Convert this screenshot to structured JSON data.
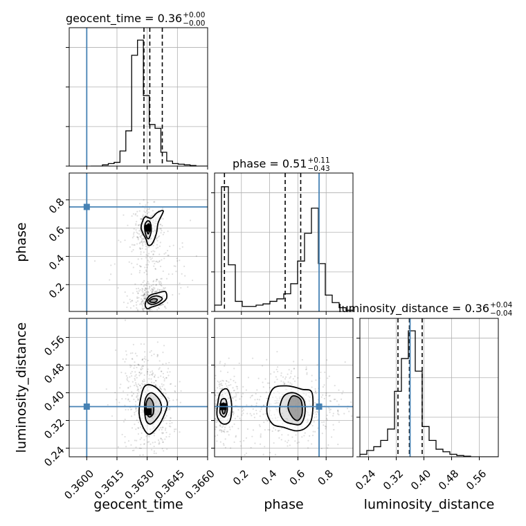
{
  "chart_data": {
    "type": "corner",
    "truth_color": "#4682b4",
    "params": [
      {
        "name": "geocent_time",
        "axis_label": "geocent_time",
        "title": {
          "prefix": "geocent_time = 0.36",
          "plus": "+0.00",
          "minus": "−0.00"
        },
        "range": [
          0.35913,
          0.366
        ],
        "ticks": [
          0.36,
          0.3615,
          0.363,
          0.3645,
          0.366
        ],
        "tick_labels": [
          "0.3600",
          "0.3615",
          "0.3630",
          "0.3645",
          "0.3660"
        ],
        "truth": 0.36,
        "q16": 0.36284,
        "median": 0.36313,
        "q84": 0.36375,
        "hist_edges_range": [
          0.3602,
          0.366
        ],
        "hist": [
          0.0,
          0.0,
          0.01,
          0.02,
          0.03,
          0.12,
          0.28,
          0.88,
          1.0,
          0.56,
          0.33,
          0.3,
          0.11,
          0.04,
          0.02,
          0.015,
          0.01,
          0.005,
          0.0,
          0.0
        ]
      },
      {
        "name": "phase",
        "axis_label": "phase",
        "title": {
          "prefix": "phase = 0.51",
          "plus": "+0.11",
          "minus": "−0.43"
        },
        "range": [
          0.01,
          0.99
        ],
        "ticks": [
          0.2,
          0.4,
          0.6,
          0.8
        ],
        "tick_labels": [
          "0.2",
          "0.4",
          "0.6",
          "0.8"
        ],
        "truth": 0.75,
        "q16": 0.08,
        "median": 0.51,
        "q84": 0.62,
        "hist_edges_range": [
          0.01,
          0.99
        ],
        "hist": [
          0.05,
          0.99,
          0.37,
          0.08,
          0.04,
          0.04,
          0.05,
          0.06,
          0.08,
          0.1,
          0.14,
          0.22,
          0.4,
          0.62,
          0.82,
          0.38,
          0.13,
          0.07,
          0.03,
          0.01
        ]
      },
      {
        "name": "luminosity_distance",
        "axis_label": "luminosity_distance",
        "title": {
          "prefix": "luminosity_distance = 0.36",
          "plus": "+0.04",
          "minus": "−0.04"
        },
        "range": [
          0.215,
          0.615
        ],
        "ticks": [
          0.24,
          0.32,
          0.4,
          0.48,
          0.56
        ],
        "tick_labels": [
          "0.24",
          "0.32",
          "0.40",
          "0.48",
          "0.56"
        ],
        "truth": 0.36,
        "q16": 0.325,
        "median": 0.358,
        "q84": 0.395,
        "hist_edges_range": [
          0.215,
          0.615
        ],
        "hist": [
          0.02,
          0.05,
          0.08,
          0.13,
          0.22,
          0.52,
          0.78,
          1.0,
          0.68,
          0.24,
          0.13,
          0.06,
          0.04,
          0.02,
          0.01,
          0.005,
          0.0,
          0.0,
          0.0,
          0.0
        ]
      }
    ],
    "pairs": [
      {
        "x": "geocent_time",
        "y": "phase",
        "blobs": [
          {
            "cx": 0.36305,
            "cy": 0.6,
            "sx": 0.00022,
            "sy": 0.05,
            "n": 280
          },
          {
            "cx": 0.36318,
            "cy": 0.09,
            "sx": 0.00028,
            "sy": 0.035,
            "n": 280
          },
          {
            "cx": 0.3632,
            "cy": 0.33,
            "sx": 0.0006,
            "sy": 0.1,
            "n": 140
          }
        ],
        "contours": [
          [
            [
              0.36275,
              0.64
            ],
            [
              0.3629,
              0.68
            ],
            [
              0.3632,
              0.67
            ],
            [
              0.3635,
              0.71
            ],
            [
              0.3638,
              0.72
            ],
            [
              0.36355,
              0.64
            ],
            [
              0.36345,
              0.56
            ],
            [
              0.36325,
              0.49
            ],
            [
              0.36305,
              0.48
            ],
            [
              0.36295,
              0.52
            ],
            [
              0.3628,
              0.56
            ],
            [
              0.3627,
              0.6
            ]
          ],
          [
            [
              0.36288,
              0.62
            ],
            [
              0.363,
              0.65
            ],
            [
              0.36315,
              0.64
            ],
            [
              0.3632,
              0.58
            ],
            [
              0.3631,
              0.53
            ],
            [
              0.363,
              0.53
            ],
            [
              0.3629,
              0.57
            ]
          ],
          [
            [
              0.36296,
              0.61
            ],
            [
              0.36308,
              0.63
            ],
            [
              0.36315,
              0.6
            ],
            [
              0.36306,
              0.56
            ],
            [
              0.36298,
              0.58
            ]
          ],
          [
            [
              0.3629,
              0.06
            ],
            [
              0.3631,
              0.12
            ],
            [
              0.3635,
              0.14
            ],
            [
              0.3639,
              0.15
            ],
            [
              0.36395,
              0.1
            ],
            [
              0.3636,
              0.06
            ],
            [
              0.3632,
              0.04
            ],
            [
              0.363,
              0.03
            ]
          ],
          [
            [
              0.36302,
              0.08
            ],
            [
              0.3632,
              0.11
            ],
            [
              0.3635,
              0.12
            ],
            [
              0.36375,
              0.1
            ],
            [
              0.3635,
              0.07
            ],
            [
              0.3632,
              0.06
            ]
          ],
          [
            [
              0.36312,
              0.085
            ],
            [
              0.3633,
              0.1
            ],
            [
              0.3635,
              0.095
            ],
            [
              0.3634,
              0.075
            ],
            [
              0.3632,
              0.075
            ]
          ]
        ],
        "peak": [
          0.36305,
          0.6
        ]
      },
      {
        "x": "geocent_time",
        "y": "luminosity_distance",
        "blobs": [
          {
            "cx": 0.36315,
            "cy": 0.355,
            "sx": 0.00035,
            "sy": 0.04,
            "n": 420
          },
          {
            "cx": 0.3627,
            "cy": 0.43,
            "sx": 0.00045,
            "sy": 0.05,
            "n": 120
          }
        ],
        "contours": [
          [
            [
              0.3627,
              0.39
            ],
            [
              0.3629,
              0.42
            ],
            [
              0.3633,
              0.42
            ],
            [
              0.3637,
              0.4
            ],
            [
              0.364,
              0.37
            ],
            [
              0.3638,
              0.33
            ],
            [
              0.3635,
              0.3
            ],
            [
              0.3631,
              0.28
            ],
            [
              0.3628,
              0.3
            ],
            [
              0.3626,
              0.34
            ]
          ],
          [
            [
              0.3629,
              0.38
            ],
            [
              0.3632,
              0.4
            ],
            [
              0.3636,
              0.38
            ],
            [
              0.3637,
              0.35
            ],
            [
              0.3634,
              0.32
            ],
            [
              0.3631,
              0.31
            ],
            [
              0.3629,
              0.33
            ]
          ],
          [
            [
              0.36295,
              0.37
            ],
            [
              0.3631,
              0.385
            ],
            [
              0.3633,
              0.37
            ],
            [
              0.3633,
              0.34
            ],
            [
              0.3631,
              0.33
            ],
            [
              0.36297,
              0.345
            ]
          ]
        ],
        "peak": [
          0.36305,
          0.345
        ]
      },
      {
        "x": "phase",
        "y": "luminosity_distance",
        "blobs": [
          {
            "cx": 0.07,
            "cy": 0.36,
            "sx": 0.03,
            "sy": 0.03,
            "n": 280
          },
          {
            "cx": 0.55,
            "cy": 0.36,
            "sx": 0.12,
            "sy": 0.04,
            "n": 460
          }
        ],
        "contours": [
          [
            [
              0.03,
              0.36
            ],
            [
              0.05,
              0.4
            ],
            [
              0.1,
              0.41
            ],
            [
              0.13,
              0.37
            ],
            [
              0.12,
              0.32
            ],
            [
              0.07,
              0.31
            ],
            [
              0.03,
              0.33
            ]
          ],
          [
            [
              0.05,
              0.36
            ],
            [
              0.06,
              0.38
            ],
            [
              0.09,
              0.38
            ],
            [
              0.1,
              0.35
            ],
            [
              0.08,
              0.33
            ],
            [
              0.05,
              0.34
            ]
          ],
          [
            [
              0.06,
              0.36
            ],
            [
              0.07,
              0.37
            ],
            [
              0.085,
              0.365
            ],
            [
              0.085,
              0.345
            ],
            [
              0.07,
              0.34
            ]
          ],
          [
            [
              0.38,
              0.35
            ],
            [
              0.42,
              0.41
            ],
            [
              0.52,
              0.42
            ],
            [
              0.63,
              0.41
            ],
            [
              0.7,
              0.4
            ],
            [
              0.7,
              0.33
            ],
            [
              0.66,
              0.3
            ],
            [
              0.59,
              0.29
            ],
            [
              0.5,
              0.3
            ],
            [
              0.42,
              0.31
            ]
          ],
          [
            [
              0.47,
              0.35
            ],
            [
              0.5,
              0.39
            ],
            [
              0.57,
              0.4
            ],
            [
              0.64,
              0.38
            ],
            [
              0.65,
              0.34
            ],
            [
              0.62,
              0.31
            ],
            [
              0.56,
              0.31
            ],
            [
              0.5,
              0.32
            ]
          ],
          [
            [
              0.53,
              0.36
            ],
            [
              0.56,
              0.39
            ],
            [
              0.62,
              0.38
            ],
            [
              0.63,
              0.34
            ],
            [
              0.6,
              0.32
            ],
            [
              0.56,
              0.33
            ]
          ]
        ],
        "peak": [
          0.07,
          0.36
        ]
      }
    ]
  }
}
